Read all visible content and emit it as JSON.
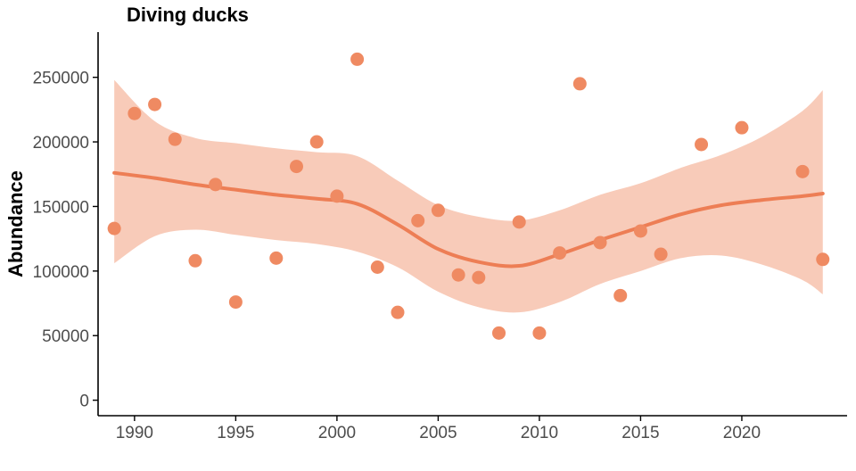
{
  "colors": {
    "point": "#ef8a62",
    "trend": "#ed7e55",
    "band": "#f7c2ad",
    "axis": "#000000",
    "tick_text": "#4d4d4d"
  },
  "chart_data": {
    "type": "scatter",
    "title": "Diving ducks",
    "xlabel": "",
    "ylabel": "Abundance",
    "xlim": [
      1988.2,
      2025.2
    ],
    "ylim": [
      -12000,
      285000
    ],
    "x_ticks": [
      1990,
      1995,
      2000,
      2005,
      2010,
      2015,
      2020
    ],
    "x_tick_labels": [
      "1990",
      "1995",
      "2000",
      "2005",
      "2010",
      "2015",
      "2020"
    ],
    "y_ticks": [
      0,
      50000,
      100000,
      150000,
      200000,
      250000
    ],
    "y_tick_labels": [
      "0",
      "50000",
      "100000",
      "150000",
      "200000",
      "250000"
    ],
    "grid": false,
    "legend": "none",
    "points": [
      {
        "x": 1989,
        "y": 133000
      },
      {
        "x": 1990,
        "y": 222000
      },
      {
        "x": 1991,
        "y": 229000
      },
      {
        "x": 1992,
        "y": 202000
      },
      {
        "x": 1993,
        "y": 108000
      },
      {
        "x": 1994,
        "y": 167000
      },
      {
        "x": 1995,
        "y": 76000
      },
      {
        "x": 1997,
        "y": 110000
      },
      {
        "x": 1998,
        "y": 181000
      },
      {
        "x": 1999,
        "y": 200000
      },
      {
        "x": 2000,
        "y": 158000
      },
      {
        "x": 2001,
        "y": 264000
      },
      {
        "x": 2002,
        "y": 103000
      },
      {
        "x": 2003,
        "y": 68000
      },
      {
        "x": 2004,
        "y": 139000
      },
      {
        "x": 2005,
        "y": 147000
      },
      {
        "x": 2006,
        "y": 97000
      },
      {
        "x": 2007,
        "y": 95000
      },
      {
        "x": 2008,
        "y": 52000
      },
      {
        "x": 2009,
        "y": 138000
      },
      {
        "x": 2010,
        "y": 52000
      },
      {
        "x": 2011,
        "y": 114000
      },
      {
        "x": 2012,
        "y": 245000
      },
      {
        "x": 2013,
        "y": 122000
      },
      {
        "x": 2014,
        "y": 81000
      },
      {
        "x": 2015,
        "y": 131000
      },
      {
        "x": 2016,
        "y": 113000
      },
      {
        "x": 2018,
        "y": 198000
      },
      {
        "x": 2020,
        "y": 211000
      },
      {
        "x": 2023,
        "y": 177000
      },
      {
        "x": 2024,
        "y": 109000
      }
    ],
    "trend": {
      "x": [
        1989,
        1991,
        1993,
        1995,
        1997,
        1999,
        2001,
        2003,
        2005,
        2007,
        2009,
        2011,
        2013,
        2015,
        2017,
        2019,
        2021,
        2023,
        2024
      ],
      "y": [
        176000,
        172000,
        167000,
        163000,
        159000,
        156000,
        152000,
        136000,
        117000,
        107000,
        104000,
        113000,
        124000,
        134000,
        144000,
        151000,
        155000,
        158000,
        160000
      ],
      "lower": [
        106000,
        127000,
        132000,
        128000,
        124000,
        121000,
        115000,
        103000,
        84000,
        72000,
        68000,
        76000,
        90000,
        100000,
        110000,
        112000,
        105000,
        93000,
        82000
      ],
      "upper": [
        248000,
        216000,
        203000,
        199000,
        195000,
        192000,
        189000,
        170000,
        151000,
        142000,
        139000,
        147000,
        159000,
        168000,
        180000,
        190000,
        204000,
        224000,
        240000
      ]
    }
  }
}
